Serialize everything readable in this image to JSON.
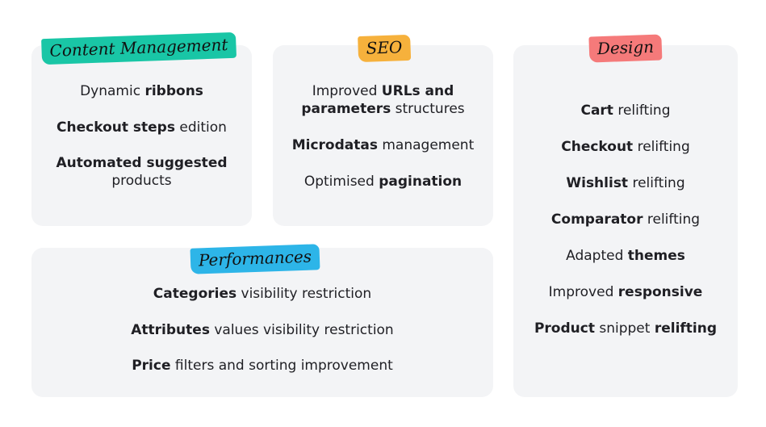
{
  "content_management": {
    "tag": "Content Management",
    "tag_color": "#19c6a6",
    "items": [
      {
        "a": "Dynamic ",
        "b": "ribbons",
        "c": ""
      },
      {
        "a": "",
        "b": "Checkout steps",
        "c": " edition"
      },
      {
        "a": "",
        "b": "Automated suggested",
        "c": "products"
      }
    ]
  },
  "seo": {
    "tag": "SEO",
    "tag_color": "#f6b13c",
    "items": [
      {
        "a": "Improved ",
        "b": "URLs and",
        "c": ""
      },
      {
        "a": "",
        "b": "parameters",
        "c": " structures"
      },
      {
        "a": "",
        "b": "Microdatas",
        "c": " management"
      },
      {
        "a": "Optimised ",
        "b": "pagination",
        "c": ""
      }
    ]
  },
  "design": {
    "tag": "Design",
    "tag_color": "#f57a7a",
    "items": [
      {
        "a": "",
        "b": "Cart",
        "c": " relifting"
      },
      {
        "a": "",
        "b": "Checkout",
        "c": " relifting"
      },
      {
        "a": "",
        "b": "Wishlist",
        "c": " relifting"
      },
      {
        "a": "",
        "b": "Comparator",
        "c": " relifting"
      },
      {
        "a": "Adapted ",
        "b": "themes",
        "c": ""
      },
      {
        "a": "Improved ",
        "b": "responsive",
        "c": ""
      },
      {
        "a": "",
        "b": "Product",
        "c": " snippet ",
        "d": "relifting"
      }
    ]
  },
  "performances": {
    "tag": "Performances",
    "tag_color": "#2db5e8",
    "items": [
      {
        "a": "",
        "b": "Categories",
        "c": " visibility restriction"
      },
      {
        "a": "",
        "b": "Attributes",
        "c": " values visibility restriction"
      },
      {
        "a": "",
        "b": "Price",
        "c": " filters and sorting improvement"
      }
    ]
  }
}
